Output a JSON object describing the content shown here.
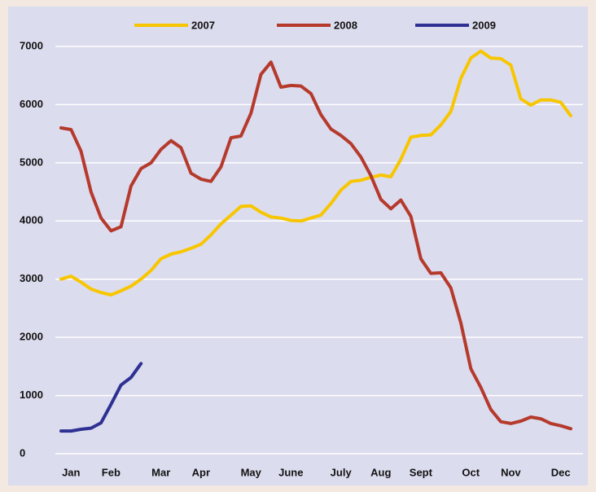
{
  "chart_data": {
    "type": "line",
    "categories": [
      null,
      "Jan",
      null,
      null,
      null,
      "Feb",
      null,
      null,
      null,
      null,
      "Mar",
      null,
      null,
      null,
      "Apr",
      null,
      null,
      null,
      null,
      "May",
      null,
      null,
      null,
      "June",
      null,
      null,
      null,
      null,
      "July",
      null,
      null,
      null,
      "Aug",
      null,
      null,
      null,
      "Sept",
      null,
      null,
      null,
      null,
      "Oct",
      null,
      null,
      null,
      "Nov",
      null,
      null,
      null,
      null,
      "Dec",
      null
    ],
    "series": [
      {
        "name": "2007",
        "color": "#f7c600",
        "values": [
          3000,
          3050,
          2950,
          2830,
          2770,
          2730,
          2800,
          2880,
          3000,
          3150,
          3350,
          3430,
          3470,
          3530,
          3600,
          3760,
          3950,
          4100,
          4250,
          4260,
          4150,
          4070,
          4050,
          4010,
          4000,
          4050,
          4100,
          4300,
          4530,
          4680,
          4700,
          4750,
          4790,
          4760,
          5060,
          5440,
          5470,
          5480,
          5650,
          5880,
          6450,
          6800,
          6920,
          6800,
          6790,
          6680,
          6100,
          5990,
          6080,
          6080,
          6040,
          5810
        ]
      },
      {
        "name": "2008",
        "color": "#b53a2c",
        "values": [
          5600,
          5570,
          5200,
          4500,
          4050,
          3830,
          3900,
          4600,
          4900,
          5000,
          5230,
          5380,
          5260,
          4820,
          4720,
          4680,
          4930,
          5430,
          5460,
          5850,
          6520,
          6730,
          6300,
          6330,
          6320,
          6190,
          5830,
          5580,
          5470,
          5330,
          5100,
          4780,
          4370,
          4210,
          4360,
          4080,
          3350,
          3100,
          3110,
          2850,
          2250,
          1460,
          1140,
          760,
          550,
          520,
          560,
          630,
          600,
          520,
          480,
          430
        ]
      },
      {
        "name": "2009",
        "color": "#2e3192",
        "values": [
          390,
          390,
          420,
          440,
          530,
          850,
          1180,
          1310,
          1550,
          null,
          null,
          null,
          null,
          null,
          null,
          null,
          null,
          null,
          null,
          null,
          null,
          null,
          null,
          null,
          null,
          null,
          null,
          null,
          null,
          null,
          null,
          null,
          null,
          null,
          null,
          null,
          null,
          null,
          null,
          null,
          null,
          null,
          null,
          null,
          null,
          null,
          null,
          null,
          null,
          null,
          null,
          null
        ]
      }
    ],
    "ylim": [
      0,
      7000
    ],
    "yticks": [
      0,
      1000,
      2000,
      3000,
      4000,
      5000,
      6000,
      7000
    ],
    "grid": true
  }
}
